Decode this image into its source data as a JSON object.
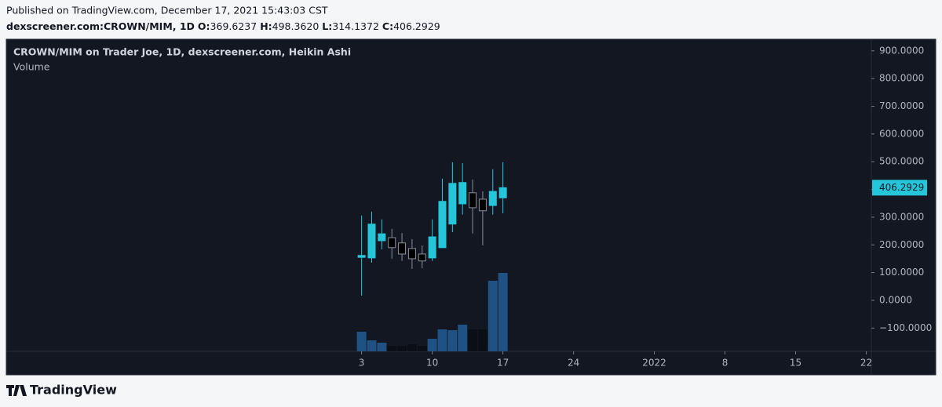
{
  "header": {
    "published": "Published on TradingView.com, December 17, 2021 15:43:03 CST",
    "symbol": "dexscreener.com:CROWN/MIM, 1D",
    "ohlc": [
      {
        "label": "O:",
        "value": "369.6237"
      },
      {
        "label": "H:",
        "value": "498.3620"
      },
      {
        "label": "L:",
        "value": "314.1372"
      },
      {
        "label": "C:",
        "value": "406.2929"
      }
    ]
  },
  "chart_data": {
    "type": "candlestick",
    "title": "CROWN/MIM on Trader Joe, 1D, dexscreener.com, Heikin Ashi",
    "subtitle": "Volume",
    "x": [
      3,
      4,
      5,
      6,
      7,
      8,
      9,
      10,
      11,
      12,
      13,
      14,
      15,
      16,
      17
    ],
    "open": [
      155,
      153,
      215,
      226,
      207,
      187,
      167,
      153,
      190,
      275,
      348,
      388,
      365,
      342,
      369.6237
    ],
    "high": [
      306,
      320,
      292,
      258,
      243,
      221,
      198,
      292,
      439,
      498,
      495,
      436,
      393,
      473,
      498.362
    ],
    "low": [
      17,
      136,
      184,
      150,
      142,
      113,
      116,
      142,
      190,
      246,
      309,
      241,
      198,
      309,
      314.1372
    ],
    "close": [
      162,
      275,
      240,
      190,
      167,
      150,
      142,
      229,
      357,
      422,
      425,
      334,
      323,
      393,
      406.2929
    ],
    "volume": [
      25,
      14,
      11,
      7,
      7,
      9,
      7,
      16,
      28,
      27,
      34,
      28,
      28,
      90,
      100
    ],
    "up_color": "#26c6da",
    "down_color": "#000000",
    "down_wick_color": "#8a8d96",
    "volume_up_color": "#1f5283",
    "volume_down_color": "#0b0e15",
    "xlim": [
      -32.2,
      53.5
    ],
    "xticks": [
      3,
      10,
      17,
      24,
      {
        "value": 32,
        "label": "2022"
      },
      {
        "value": 39,
        "label": "8"
      },
      {
        "value": 46,
        "label": "15"
      },
      {
        "value": 53,
        "label": "22"
      }
    ],
    "ylim": [
      -184,
      942
    ],
    "yticks": [
      {
        "value": 900,
        "label": "900.0000"
      },
      {
        "value": 800,
        "label": "800.0000"
      },
      {
        "value": 700,
        "label": "700.0000"
      },
      {
        "value": 600,
        "label": "600.0000"
      },
      {
        "value": 500,
        "label": "500.0000"
      },
      {
        "value": 400,
        "label": "400.0000"
      },
      {
        "value": 300,
        "label": "300.0000"
      },
      {
        "value": 200,
        "label": "200.0000"
      },
      {
        "value": 100,
        "label": "100.0000"
      },
      {
        "value": 0,
        "label": "0.0000"
      },
      {
        "value": -100,
        "label": "−100.0000"
      }
    ]
  },
  "footer": {
    "brand": "TradingView"
  }
}
